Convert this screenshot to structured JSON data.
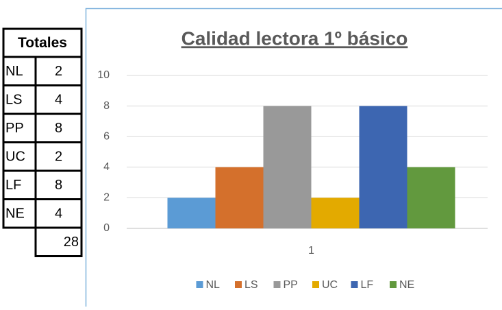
{
  "table": {
    "title": "Totales",
    "rows": [
      [
        "NL",
        "2"
      ],
      [
        "LS",
        "4"
      ],
      [
        "PP",
        "8"
      ],
      [
        "UC",
        "2"
      ],
      [
        "LF",
        "8"
      ],
      [
        "NE",
        "4"
      ]
    ],
    "total": "28"
  },
  "chart_data": {
    "type": "bar",
    "title": "Calidad lectora 1º básico",
    "categories": [
      "1"
    ],
    "series": [
      {
        "name": "NL",
        "color": "#5b9bd5",
        "values": [
          2
        ]
      },
      {
        "name": "LS",
        "color": "#d4702c",
        "values": [
          4
        ]
      },
      {
        "name": "PP",
        "color": "#999999",
        "values": [
          8
        ]
      },
      {
        "name": "UC",
        "color": "#e3aa00",
        "values": [
          2
        ]
      },
      {
        "name": "LF",
        "color": "#3d66b1",
        "values": [
          8
        ]
      },
      {
        "name": "NE",
        "color": "#62993e",
        "values": [
          4
        ]
      }
    ],
    "ylim": [
      0,
      10
    ],
    "yticks": [
      0,
      2,
      4,
      6,
      8,
      10
    ],
    "grid": true,
    "legend": "bottom"
  }
}
